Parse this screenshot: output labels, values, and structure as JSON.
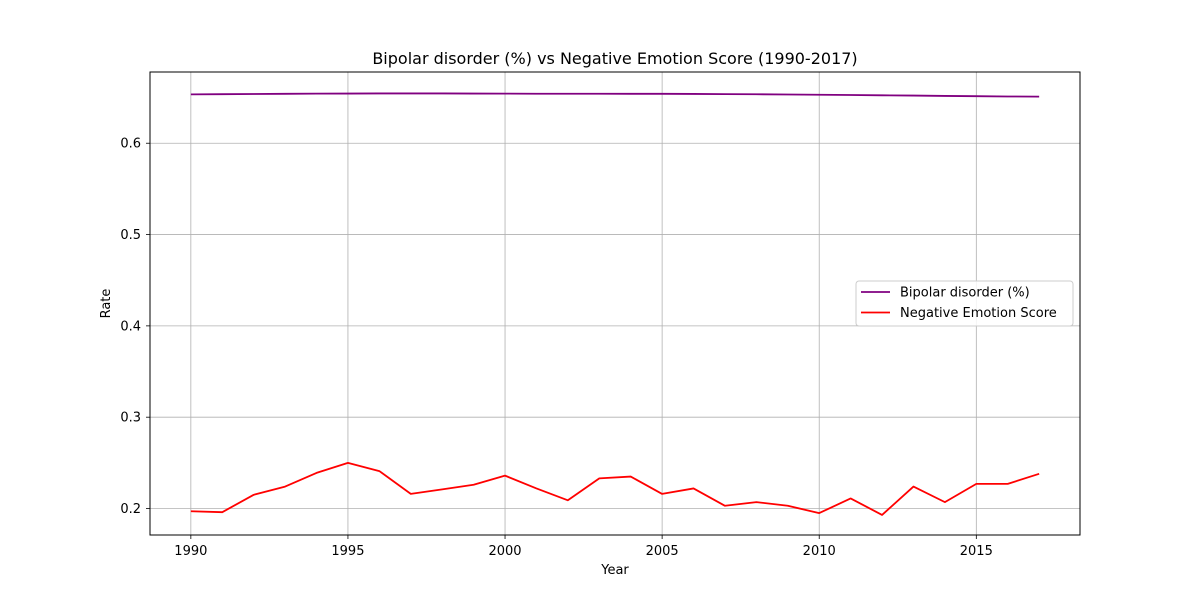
{
  "chart_data": {
    "type": "line",
    "title": "Bipolar disorder (%) vs Negative Emotion Score (1990-2017)",
    "xlabel": "Year",
    "ylabel": "Rate",
    "xlim": [
      1988.7,
      2018.3
    ],
    "ylim": [
      0.171,
      0.678
    ],
    "xticks": [
      1990,
      1995,
      2000,
      2005,
      2010,
      2015
    ],
    "yticks": [
      0.2,
      0.3,
      0.4,
      0.5,
      0.6
    ],
    "ytick_labels": [
      "0.2",
      "0.3",
      "0.4",
      "0.5",
      "0.6"
    ],
    "grid": true,
    "legend_position": "center-right",
    "x": [
      1990,
      1991,
      1992,
      1993,
      1994,
      1995,
      1996,
      1997,
      1998,
      1999,
      2000,
      2001,
      2002,
      2003,
      2004,
      2005,
      2006,
      2007,
      2008,
      2009,
      2010,
      2011,
      2012,
      2013,
      2014,
      2015,
      2016,
      2017
    ],
    "series": [
      {
        "name": "Bipolar disorder (%)",
        "color": "#800080",
        "values": [
          0.6535,
          0.6537,
          0.6539,
          0.6541,
          0.6543,
          0.6544,
          0.6545,
          0.6545,
          0.6545,
          0.6544,
          0.6543,
          0.6542,
          0.6542,
          0.6542,
          0.6541,
          0.6541,
          0.654,
          0.6538,
          0.6536,
          0.6534,
          0.6531,
          0.6528,
          0.6525,
          0.6522,
          0.6518,
          0.6515,
          0.6512,
          0.651
        ]
      },
      {
        "name": "Negative Emotion Score",
        "color": "#ff0000",
        "values": [
          0.197,
          0.196,
          0.215,
          0.224,
          0.239,
          0.25,
          0.241,
          0.216,
          0.221,
          0.226,
          0.236,
          0.222,
          0.209,
          0.233,
          0.235,
          0.216,
          0.222,
          0.203,
          0.207,
          0.203,
          0.195,
          0.211,
          0.193,
          0.224,
          0.207,
          0.227,
          0.227,
          0.238
        ]
      }
    ]
  }
}
